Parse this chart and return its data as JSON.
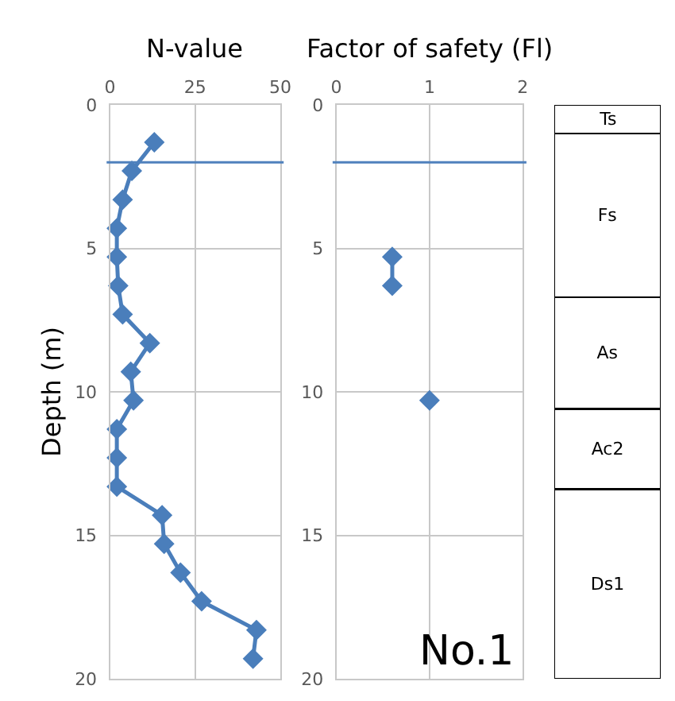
{
  "chart_data": [
    {
      "type": "line",
      "title": "N-value",
      "ylabel": "Depth (m)",
      "xlim": [
        0,
        50
      ],
      "xticks": [
        0,
        25,
        50
      ],
      "ylim": [
        20,
        0
      ],
      "yticks": [
        0,
        5,
        10,
        15,
        20
      ],
      "grid": true,
      "legend": false,
      "marker": "diamond",
      "line_style": "solid",
      "series": [
        {
          "color": "#4a7ebb",
          "x": [
            13,
            6.4,
            3.7,
            2,
            2,
            2.4,
            3.7,
            11.7,
            6.1,
            6.9,
            2,
            2,
            2,
            15.3,
            15.9,
            20.7,
            26.9,
            43,
            42
          ],
          "values": [
            1.3,
            2.3,
            3.3,
            4.3,
            5.3,
            6.3,
            7.3,
            8.3,
            9.3,
            10.3,
            11.3,
            12.3,
            13.3,
            14.3,
            15.3,
            16.3,
            17.3,
            18.3,
            19.3
          ]
        }
      ],
      "ref_lines": [
        {
          "axis": "y",
          "value": 2.0,
          "color": "#4f81bd"
        }
      ]
    },
    {
      "type": "line",
      "title": "Factor of safety (Fl)",
      "xlim": [
        0,
        2
      ],
      "xticks": [
        0,
        1,
        2
      ],
      "ylim": [
        20,
        0
      ],
      "yticks": [
        0,
        5,
        10,
        15,
        20
      ],
      "grid": true,
      "legend": false,
      "marker": "diamond",
      "line_style": "solid",
      "series": [
        {
          "color": "#4a7ebb",
          "x": [
            0.6,
            0.6,
            null,
            1.0
          ],
          "values": [
            5.3,
            6.3,
            null,
            10.3
          ]
        }
      ],
      "ref_lines": [
        {
          "axis": "y",
          "value": 2.0,
          "color": "#4f81bd"
        }
      ],
      "annotations": [
        "No.1"
      ]
    },
    {
      "type": "bar",
      "stacked": true,
      "categories": [
        null
      ],
      "ylim": [
        20,
        0
      ],
      "grid": false,
      "legend": false,
      "series": [
        {
          "name": "Ts",
          "color": "#ffffff",
          "values": [
            1.0
          ]
        },
        {
          "name": "Fs",
          "color": "#ffffff",
          "values": [
            5.7
          ]
        },
        {
          "name": "As",
          "color": "#ffffff",
          "values": [
            3.9
          ]
        },
        {
          "name": "Ac2",
          "color": "#ffffff",
          "values": [
            2.8
          ]
        },
        {
          "name": "Ds1",
          "color": "#ffffff",
          "values": [
            6.6
          ]
        }
      ]
    }
  ]
}
